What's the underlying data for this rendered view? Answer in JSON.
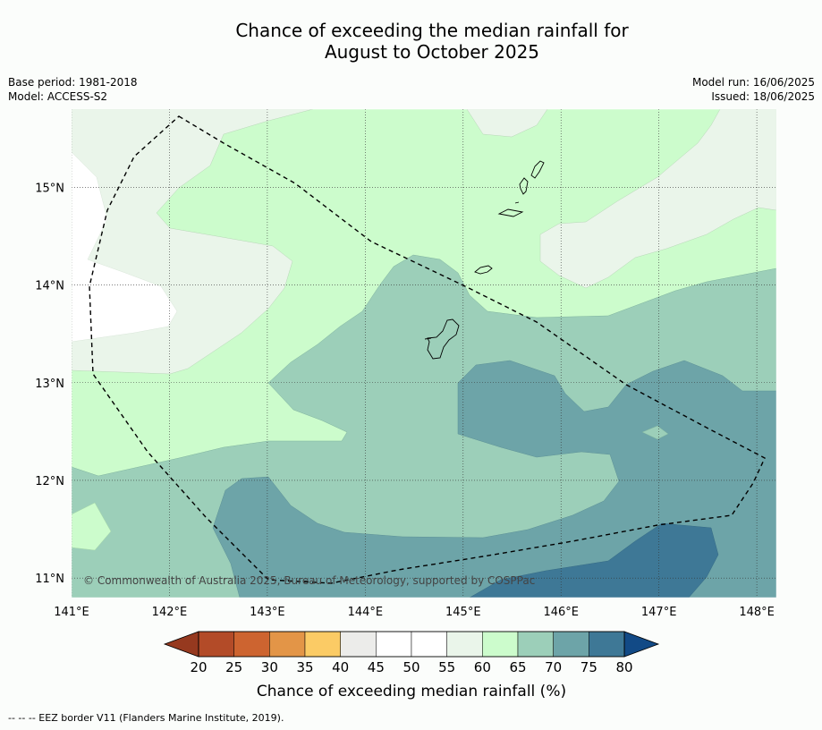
{
  "title_line1": "Chance of exceeding the median rainfall for",
  "title_line2": "August to October 2025",
  "meta": {
    "base_period": "Base period: 1981-2018",
    "model": "Model: ACCESS-S2",
    "model_run": "Model run: 16/06/2025",
    "issued": "Issued: 18/06/2025"
  },
  "map": {
    "lon_range": [
      141.0,
      148.2
    ],
    "lat_range": [
      10.8,
      15.8
    ],
    "lon_ticks": [
      {
        "value": 141,
        "label": "141°E"
      },
      {
        "value": 142,
        "label": "142°E"
      },
      {
        "value": 143,
        "label": "143°E"
      },
      {
        "value": 144,
        "label": "144°E"
      },
      {
        "value": 145,
        "label": "145°E"
      },
      {
        "value": 146,
        "label": "146°E"
      },
      {
        "value": 147,
        "label": "147°E"
      },
      {
        "value": 148,
        "label": "148°E"
      }
    ],
    "lat_ticks": [
      {
        "value": 15,
        "label": "15°N"
      },
      {
        "value": 14,
        "label": "14°N"
      },
      {
        "value": 13,
        "label": "13°N"
      },
      {
        "value": 12,
        "label": "12°N"
      },
      {
        "value": 11,
        "label": "11°N"
      }
    ],
    "copyright": "© Commonwealth of Australia 2025, Bureau of Meteorology, supported by COSPPac"
  },
  "colorbar": {
    "label": "Chance of exceeding median rainfall (%)",
    "ticks": [
      "20",
      "25",
      "30",
      "35",
      "40",
      "45",
      "50",
      "55",
      "60",
      "65",
      "70",
      "75",
      "80"
    ],
    "under_color": "#96391f",
    "over_color": "#124a86",
    "colors": [
      "#b34b28",
      "#cd6430",
      "#e39547",
      "#fbcb65",
      "#ececea",
      "#ffffff",
      "#ffffff",
      "#eaf5ea",
      "#ccfccc",
      "#9ccfb9",
      "#6da4a8",
      "#3e7896"
    ]
  },
  "legend_note": "--  --  -- EEZ border V11 (Flanders Marine Institute, 2019)."
}
